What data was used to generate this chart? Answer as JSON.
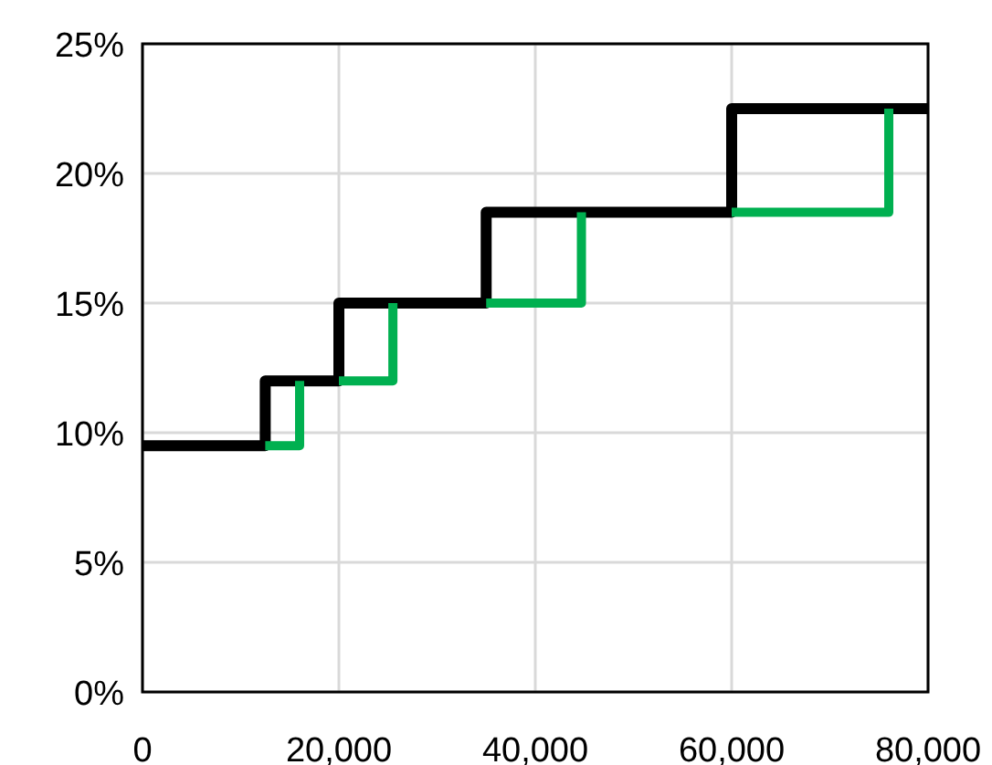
{
  "chart_data": {
    "type": "line",
    "xlim": [
      0,
      80000
    ],
    "ylim": [
      0,
      25
    ],
    "xticks": [
      {
        "value": 0,
        "label": "0"
      },
      {
        "value": 20000,
        "label": "20,000"
      },
      {
        "value": 40000,
        "label": "40,000"
      },
      {
        "value": 60000,
        "label": "60,000"
      },
      {
        "value": 80000,
        "label": "80,000"
      }
    ],
    "yticks": [
      {
        "value": 0,
        "label": "0%"
      },
      {
        "value": 5,
        "label": "5%"
      },
      {
        "value": 10,
        "label": "10%"
      },
      {
        "value": 15,
        "label": "15%"
      },
      {
        "value": 20,
        "label": "20%"
      },
      {
        "value": 25,
        "label": "25%"
      }
    ],
    "grid": true,
    "series": [
      {
        "type": "step",
        "color": "#000000",
        "x": [
          0,
          12500,
          20000,
          35000,
          60000,
          80000
        ],
        "values": [
          9.5,
          12,
          15,
          18.5,
          22.5,
          22.5
        ]
      },
      {
        "color": "#00b050",
        "x": [
          12500,
          16000,
          16000
        ],
        "values": [
          9.5,
          9.5,
          12
        ]
      },
      {
        "color": "#00b050",
        "x": [
          20000,
          25500,
          25500
        ],
        "values": [
          12,
          12,
          15
        ]
      },
      {
        "color": "#00b050",
        "x": [
          35000,
          44700,
          44700
        ],
        "values": [
          15,
          15,
          18.5
        ]
      },
      {
        "color": "#00b050",
        "x": [
          60000,
          76000,
          76000
        ],
        "values": [
          18.5,
          18.5,
          22.5
        ]
      }
    ]
  }
}
